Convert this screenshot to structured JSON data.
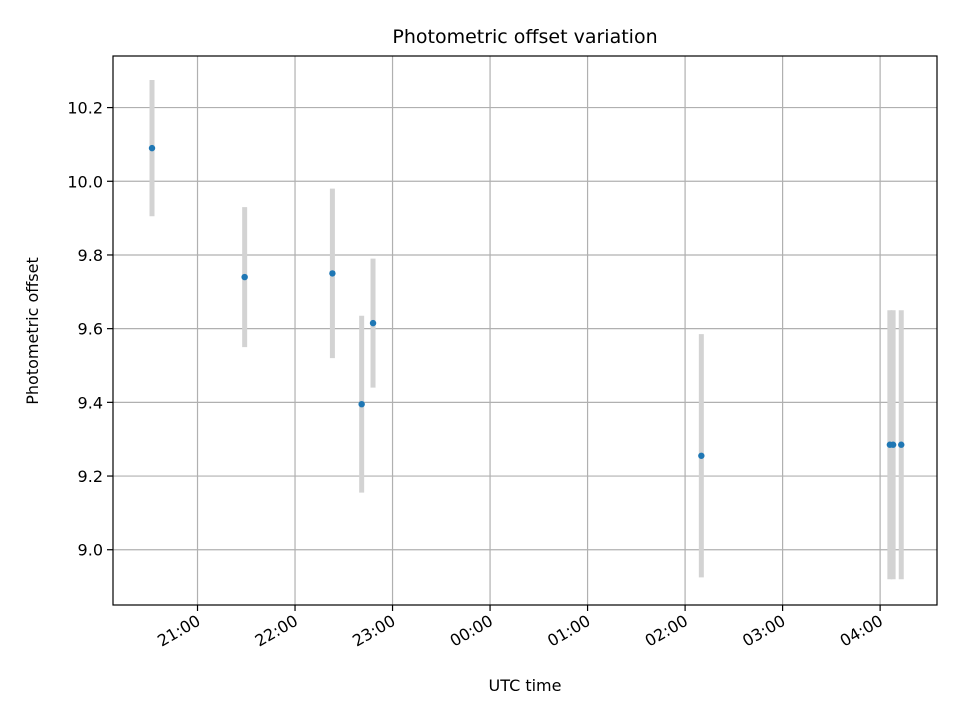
{
  "chart_data": {
    "type": "scatter",
    "title": "Photometric offset variation",
    "xlabel": "UTC time",
    "ylabel": "Photometric offset",
    "grid": true,
    "x_axis_type": "time",
    "xlim": [
      "20:08",
      "04:35"
    ],
    "ylim": [
      8.85,
      10.34
    ],
    "x_ticks": [
      "21:00",
      "22:00",
      "23:00",
      "00:00",
      "01:00",
      "02:00",
      "03:00",
      "04:00"
    ],
    "y_ticks": [
      9.0,
      9.2,
      9.4,
      9.6,
      9.8,
      10.0,
      10.2
    ],
    "marker_color": "#1f77b4",
    "errorbar_color": "#d3d3d3",
    "points": [
      {
        "x": "20:32",
        "y": 10.09,
        "yerr": 0.185
      },
      {
        "x": "21:29",
        "y": 9.74,
        "yerr": 0.19
      },
      {
        "x": "22:23",
        "y": 9.75,
        "yerr": 0.23
      },
      {
        "x": "22:41",
        "y": 9.395,
        "yerr": 0.24
      },
      {
        "x": "22:48",
        "y": 9.615,
        "yerr": 0.175
      },
      {
        "x": "02:10",
        "y": 9.255,
        "yerr": 0.33
      },
      {
        "x": "04:06",
        "y": 9.285,
        "yerr": 0.365
      },
      {
        "x": "04:08",
        "y": 9.285,
        "yerr": 0.365
      },
      {
        "x": "04:13",
        "y": 9.285,
        "yerr": 0.365
      }
    ]
  }
}
